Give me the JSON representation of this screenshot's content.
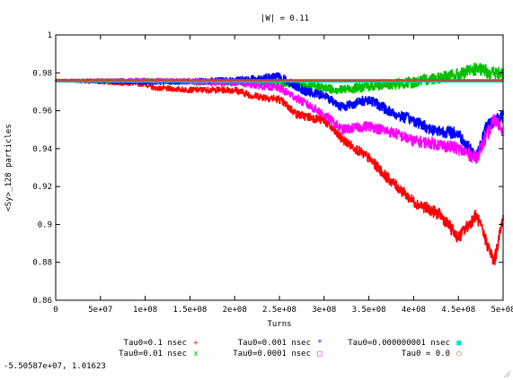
{
  "chart_data": {
    "type": "line",
    "title": "|W| = 0.11",
    "xlabel": "Turns",
    "ylabel": "<Sy>_128 particles",
    "xlim": [
      0,
      500000000
    ],
    "ylim": [
      0.86,
      1.0
    ],
    "xticks": [
      0,
      50000000,
      100000000,
      150000000,
      200000000,
      250000000,
      300000000,
      350000000,
      400000000,
      450000000,
      500000000
    ],
    "xtick_labels": [
      "0",
      "5e+07",
      "1e+08",
      "1.5e+08",
      "2e+08",
      "2.5e+08",
      "3e+08",
      "3.5e+08",
      "4e+08",
      "4.5e+08",
      "5e+08"
    ],
    "yticks": [
      0.86,
      0.88,
      0.9,
      0.92,
      0.94,
      0.96,
      0.98,
      1.0
    ],
    "ytick_labels": [
      "0.86",
      "0.88",
      "0.9",
      "0.92",
      "0.94",
      "0.96",
      "0.98",
      "1"
    ],
    "legend_position": "bottom",
    "series": [
      {
        "name": "Tau0=0.1 nsec",
        "color": "#ff0000",
        "marker": "+",
        "x": [
          0,
          50000000,
          100000000,
          110000000,
          150000000,
          200000000,
          220000000,
          250000000,
          270000000,
          300000000,
          320000000,
          350000000,
          370000000,
          400000000,
          430000000,
          450000000,
          470000000,
          490000000,
          500000000
        ],
        "y": [
          0.976,
          0.975,
          0.974,
          0.972,
          0.971,
          0.971,
          0.968,
          0.966,
          0.958,
          0.955,
          0.945,
          0.935,
          0.925,
          0.912,
          0.905,
          0.893,
          0.905,
          0.88,
          0.904
        ]
      },
      {
        "name": "Tau0=0.01 nsec",
        "color": "#00c000",
        "marker": "x",
        "x": [
          0,
          50000000,
          100000000,
          150000000,
          200000000,
          250000000,
          300000000,
          320000000,
          350000000,
          400000000,
          420000000,
          450000000,
          470000000,
          490000000,
          500000000
        ],
        "y": [
          0.976,
          0.976,
          0.976,
          0.975,
          0.975,
          0.975,
          0.972,
          0.971,
          0.973,
          0.975,
          0.977,
          0.979,
          0.982,
          0.98,
          0.979
        ]
      },
      {
        "name": "Tau0=0.001 nsec",
        "color": "#0000ff",
        "marker": "*",
        "x": [
          0,
          100000000,
          200000000,
          250000000,
          280000000,
          300000000,
          320000000,
          350000000,
          380000000,
          400000000,
          420000000,
          450000000,
          470000000,
          480000000,
          490000000,
          500000000
        ],
        "y": [
          0.976,
          0.975,
          0.976,
          0.978,
          0.97,
          0.968,
          0.962,
          0.966,
          0.958,
          0.955,
          0.95,
          0.948,
          0.935,
          0.95,
          0.955,
          0.957
        ]
      },
      {
        "name": "Tau0=0.0001 nsec",
        "color": "#ff00ff",
        "marker": "□",
        "x": [
          0,
          100000000,
          200000000,
          250000000,
          300000000,
          320000000,
          350000000,
          380000000,
          400000000,
          420000000,
          450000000,
          470000000,
          490000000,
          500000000
        ],
        "y": [
          0.976,
          0.976,
          0.975,
          0.972,
          0.958,
          0.95,
          0.952,
          0.948,
          0.944,
          0.943,
          0.94,
          0.935,
          0.955,
          0.95
        ]
      },
      {
        "name": "Tau0=0.000000001 nsec",
        "color": "#00e0e0",
        "marker": "■",
        "x": [
          0,
          500000000
        ],
        "y": [
          0.9755,
          0.9755
        ]
      },
      {
        "name": "Tau0 = 0.0",
        "color": "#b05040",
        "marker": "○",
        "x": [
          0,
          500000000
        ],
        "y": [
          0.976,
          0.976
        ]
      }
    ]
  },
  "status": {
    "coords": "-5.50587e+07,  1.01623"
  }
}
